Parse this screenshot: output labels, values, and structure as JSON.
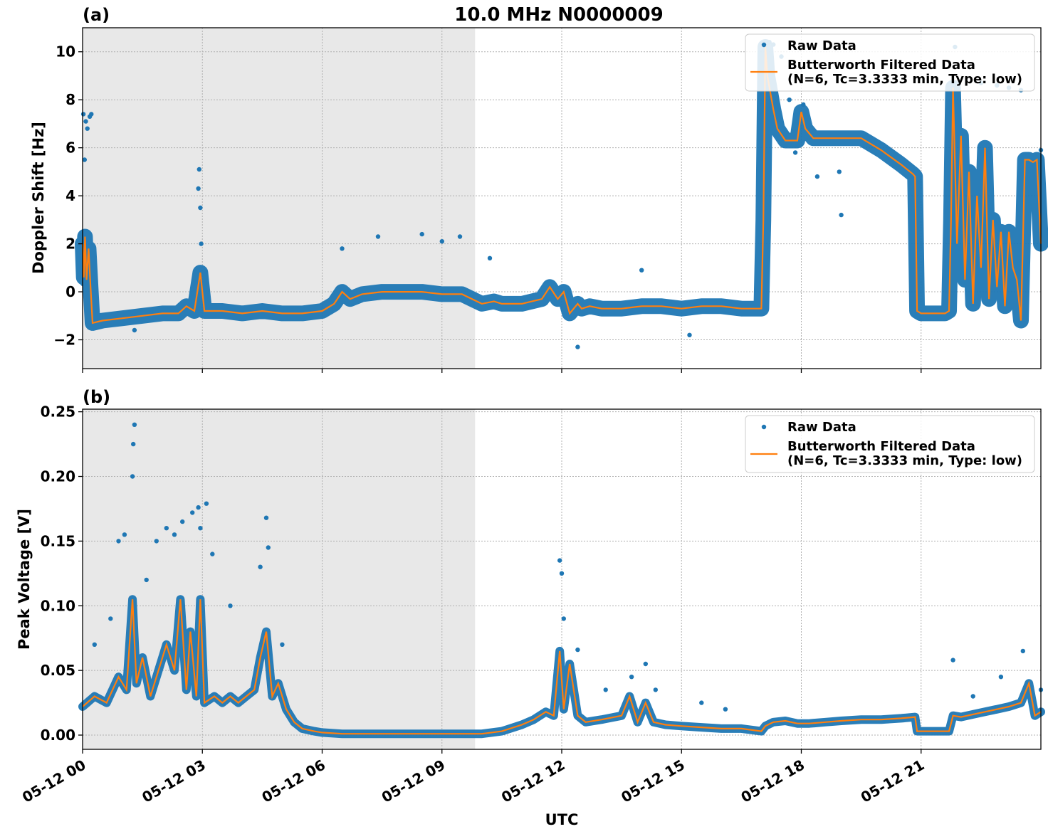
{
  "title": "10.0 MHz N0000009",
  "colors": {
    "raw": "#1f77b4",
    "filtered": "#ff7f0e",
    "night_shade": "#e8e8e8"
  },
  "chart_data": [
    {
      "type": "scatter",
      "panel_label": "(a)",
      "ylabel": "Doppler Shift [Hz]",
      "xlabel": "",
      "x_unit": "hours since 05-12 00 UTC",
      "xlim": [
        0,
        24
      ],
      "ylim": [
        -3.2,
        11
      ],
      "yticks": [
        -2,
        0,
        2,
        4,
        6,
        8,
        10
      ],
      "ytick_labels": [
        "−2",
        "0",
        "2",
        "4",
        "6",
        "8",
        "10"
      ],
      "shaded_region": [
        0,
        9.83
      ],
      "grid": true,
      "legend_position": "top-right",
      "legend": {
        "raw": "Raw Data",
        "filtered_line1": "Butterworth Filtered Data",
        "filtered_line2": "(N=6, Tc=3.3333 min, Type: low)"
      },
      "series": [
        {
          "name": "Butterworth Filtered Data",
          "style": "line",
          "x": [
            0,
            0.03,
            0.06,
            0.1,
            0.15,
            0.2,
            0.25,
            0.5,
            1,
            1.5,
            2,
            2.4,
            2.6,
            2.8,
            2.95,
            3.05,
            3.5,
            4,
            4.5,
            5,
            5.5,
            6,
            6.3,
            6.5,
            6.7,
            7,
            7.5,
            8,
            8.5,
            9,
            9.5,
            10,
            10.3,
            10.5,
            11,
            11.5,
            11.7,
            11.9,
            12.05,
            12.2,
            12.4,
            12.5,
            12.7,
            13,
            13.5,
            14,
            14.5,
            15,
            15.5,
            16,
            16.5,
            17,
            17.05,
            17.1,
            17.15,
            17.3,
            17.4,
            17.6,
            17.9,
            18.0,
            18.1,
            18.3,
            18.6,
            19.0,
            19.5,
            20.0,
            20.5,
            20.8,
            20.85,
            20.9,
            21,
            21.3,
            21.6,
            21.7,
            21.75,
            21.8,
            21.9,
            22,
            22.1,
            22.2,
            22.3,
            22.4,
            22.5,
            22.6,
            22.7,
            22.8,
            22.9,
            23,
            23.1,
            23.2,
            23.3,
            23.4,
            23.5,
            23.6,
            23.7,
            23.8,
            23.9,
            24
          ],
          "values": [
            2.0,
            0.6,
            2.3,
            0.5,
            1.8,
            0.2,
            -1.3,
            -1.2,
            -1.1,
            -1.0,
            -0.9,
            -0.9,
            -0.6,
            -0.8,
            0.8,
            -0.8,
            -0.8,
            -0.9,
            -0.8,
            -0.9,
            -0.9,
            -0.8,
            -0.5,
            0.0,
            -0.3,
            -0.1,
            0.0,
            0.0,
            0.0,
            -0.1,
            -0.1,
            -0.5,
            -0.4,
            -0.5,
            -0.5,
            -0.3,
            0.2,
            -0.3,
            0.0,
            -0.9,
            -0.5,
            -0.7,
            -0.6,
            -0.7,
            -0.7,
            -0.6,
            -0.6,
            -0.7,
            -0.6,
            -0.6,
            -0.7,
            -0.7,
            3.0,
            10.2,
            9.0,
            7.6,
            6.8,
            6.3,
            6.3,
            7.5,
            6.8,
            6.4,
            6.4,
            6.4,
            6.4,
            5.9,
            5.3,
            4.9,
            4.8,
            -0.8,
            -0.9,
            -0.9,
            -0.9,
            -0.8,
            3.0,
            8.5,
            2.0,
            6.5,
            0.5,
            5.0,
            -0.5,
            4.0,
            1.0,
            6.0,
            -0.3,
            3.0,
            0.2,
            2.5,
            -0.6,
            2.5,
            1.0,
            0.5,
            -1.2,
            5.5,
            5.5,
            5.4,
            5.5,
            2.0
          ]
        },
        {
          "name": "Raw Data",
          "style": "points",
          "x": [
            0.02,
            0.05,
            0.08,
            0.12,
            0.18,
            0.22,
            1.3,
            2.9,
            2.92,
            2.95,
            2.97,
            6.5,
            7.4,
            8.5,
            9.0,
            9.45,
            10.2,
            12.4,
            14.0,
            15.2,
            17.2,
            17.3,
            17.5,
            17.7,
            17.85,
            18.05,
            18.4,
            18.95,
            19.0,
            21.85,
            22.5,
            22.9,
            23.2,
            23.5,
            24
          ],
          "values": [
            7.4,
            5.5,
            7.1,
            6.8,
            7.3,
            7.4,
            -1.6,
            4.3,
            5.1,
            3.5,
            2.0,
            1.8,
            2.3,
            2.4,
            2.1,
            2.3,
            1.4,
            -2.3,
            0.9,
            -1.8,
            10.4,
            10.3,
            9.8,
            8.0,
            5.8,
            7.8,
            4.8,
            5.0,
            3.2,
            10.2,
            8.7,
            8.6,
            8.5,
            8.4,
            5.9
          ]
        }
      ]
    },
    {
      "type": "scatter",
      "panel_label": "(b)",
      "ylabel": "Peak Voltage [V]",
      "xlabel": "UTC",
      "x_unit": "hours since 05-12 00 UTC",
      "xlim": [
        0,
        24
      ],
      "ylim": [
        -0.011,
        0.252
      ],
      "yticks": [
        0.0,
        0.05,
        0.1,
        0.15,
        0.2,
        0.25
      ],
      "ytick_labels": [
        "0.00",
        "0.05",
        "0.10",
        "0.15",
        "0.20",
        "0.25"
      ],
      "xticks": [
        0,
        3,
        6,
        9,
        12,
        15,
        18,
        21
      ],
      "xtick_labels": [
        "05-12 00",
        "05-12 03",
        "05-12 06",
        "05-12 09",
        "05-12 12",
        "05-12 15",
        "05-12 18",
        "05-12 21"
      ],
      "shaded_region": [
        0,
        9.83
      ],
      "grid": true,
      "legend_position": "top-right",
      "legend": {
        "raw": "Raw Data",
        "filtered_line1": "Butterworth Filtered Data",
        "filtered_line2": "(N=6, Tc=3.3333 min, Type: low)"
      },
      "series": [
        {
          "name": "Butterworth Filtered Data",
          "style": "line",
          "x": [
            0,
            0.3,
            0.6,
            0.9,
            1.1,
            1.25,
            1.35,
            1.5,
            1.7,
            1.9,
            2.1,
            2.3,
            2.45,
            2.6,
            2.7,
            2.85,
            2.95,
            3.05,
            3.3,
            3.5,
            3.7,
            3.9,
            4.1,
            4.3,
            4.45,
            4.6,
            4.75,
            4.9,
            5.1,
            5.3,
            5.5,
            5.8,
            6,
            6.5,
            7,
            8,
            9,
            10,
            10.5,
            11,
            11.3,
            11.6,
            11.8,
            11.95,
            12.05,
            12.2,
            12.4,
            12.6,
            13,
            13.5,
            13.7,
            13.9,
            14.1,
            14.3,
            14.6,
            15,
            15.5,
            16,
            16.5,
            17,
            17.1,
            17.3,
            17.6,
            17.9,
            18.2,
            18.6,
            19,
            19.5,
            20,
            20.5,
            20.85,
            20.9,
            21.2,
            21.5,
            21.7,
            21.8,
            22,
            22.3,
            22.6,
            22.9,
            23.2,
            23.5,
            23.7,
            23.85,
            24
          ],
          "values": [
            0.022,
            0.03,
            0.025,
            0.045,
            0.035,
            0.105,
            0.04,
            0.06,
            0.03,
            0.05,
            0.07,
            0.05,
            0.105,
            0.035,
            0.08,
            0.03,
            0.105,
            0.025,
            0.03,
            0.025,
            0.03,
            0.025,
            0.03,
            0.035,
            0.06,
            0.08,
            0.03,
            0.04,
            0.02,
            0.01,
            0.005,
            0.003,
            0.002,
            0.001,
            0.001,
            0.001,
            0.001,
            0.001,
            0.003,
            0.008,
            0.012,
            0.018,
            0.015,
            0.065,
            0.02,
            0.055,
            0.015,
            0.01,
            0.012,
            0.015,
            0.03,
            0.01,
            0.025,
            0.01,
            0.008,
            0.007,
            0.006,
            0.005,
            0.005,
            0.003,
            0.007,
            0.01,
            0.011,
            0.009,
            0.009,
            0.01,
            0.011,
            0.012,
            0.012,
            0.013,
            0.014,
            0.003,
            0.003,
            0.003,
            0.003,
            0.015,
            0.014,
            0.016,
            0.018,
            0.02,
            0.022,
            0.025,
            0.04,
            0.015,
            0.018
          ]
        },
        {
          "name": "Raw Data",
          "style": "points",
          "x": [
            0.3,
            0.7,
            0.9,
            1.05,
            1.25,
            1.27,
            1.3,
            1.6,
            1.85,
            2.1,
            2.3,
            2.5,
            2.75,
            2.9,
            2.95,
            3.1,
            3.25,
            3.7,
            4.45,
            4.6,
            4.65,
            5.0,
            11.95,
            12.0,
            12.05,
            12.4,
            13.1,
            13.75,
            14.1,
            14.35,
            15.5,
            16.1,
            21.8,
            22.3,
            23.0,
            23.55,
            24
          ],
          "values": [
            0.07,
            0.09,
            0.15,
            0.155,
            0.2,
            0.225,
            0.24,
            0.12,
            0.15,
            0.16,
            0.155,
            0.165,
            0.172,
            0.176,
            0.16,
            0.179,
            0.14,
            0.1,
            0.13,
            0.168,
            0.145,
            0.07,
            0.135,
            0.125,
            0.09,
            0.066,
            0.035,
            0.045,
            0.055,
            0.035,
            0.025,
            0.02,
            0.058,
            0.03,
            0.045,
            0.065,
            0.035
          ]
        }
      ]
    }
  ]
}
